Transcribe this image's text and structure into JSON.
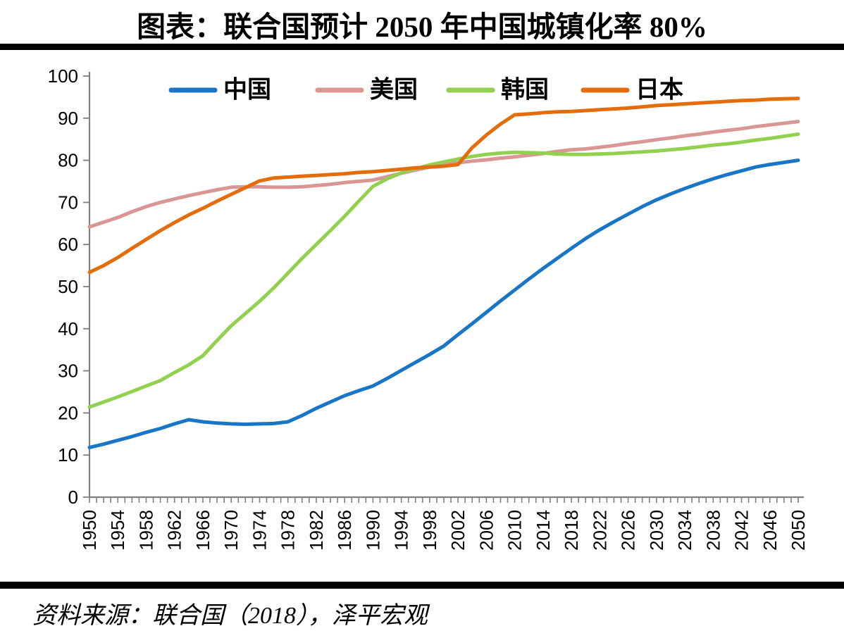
{
  "title": "图表：联合国预计 2050 年中国城镇化率 80%",
  "source": "资料来源：联合国（2018），泽平宏观",
  "colors": {
    "divider_bar": "#000000",
    "axis": "#7f7f7f",
    "text": "#000000",
    "background": "#ffffff"
  },
  "chart_data": {
    "type": "line",
    "title": "联合国预计 2050 年中国城镇化率 80%",
    "xlabel": "",
    "ylabel": "",
    "ylim": [
      0,
      100
    ],
    "y_tick_step": 10,
    "x_range": [
      1950,
      2050
    ],
    "x_minor_tick_step": 1,
    "x_label_step": 4,
    "grid": false,
    "legend_position": "top",
    "x": [
      1950,
      1952,
      1954,
      1956,
      1958,
      1960,
      1962,
      1964,
      1966,
      1968,
      1970,
      1972,
      1974,
      1976,
      1978,
      1980,
      1982,
      1984,
      1986,
      1988,
      1990,
      1992,
      1994,
      1996,
      1998,
      2000,
      2002,
      2004,
      2006,
      2008,
      2010,
      2012,
      2014,
      2016,
      2018,
      2020,
      2022,
      2024,
      2026,
      2028,
      2030,
      2032,
      2034,
      2036,
      2038,
      2040,
      2042,
      2044,
      2046,
      2048,
      2050
    ],
    "series": [
      {
        "key": "china",
        "name": "中国",
        "color": "#1976C6",
        "values": [
          11.8,
          12.6,
          13.5,
          14.4,
          15.4,
          16.3,
          17.4,
          18.4,
          17.9,
          17.6,
          17.4,
          17.3,
          17.4,
          17.5,
          17.9,
          19.4,
          21.1,
          22.6,
          24.1,
          25.3,
          26.4,
          28.2,
          30.1,
          32.0,
          33.9,
          35.9,
          38.6,
          41.2,
          43.9,
          46.6,
          49.2,
          51.8,
          54.3,
          56.7,
          59.1,
          61.4,
          63.5,
          65.4,
          67.2,
          69.0,
          70.6,
          72.0,
          73.3,
          74.5,
          75.6,
          76.6,
          77.5,
          78.4,
          79.0,
          79.5,
          80.0
        ]
      },
      {
        "key": "usa",
        "name": "美国",
        "color": "#D99694",
        "values": [
          64.2,
          65.3,
          66.4,
          67.8,
          69.0,
          70.0,
          70.8,
          71.6,
          72.3,
          73.0,
          73.6,
          73.7,
          73.7,
          73.6,
          73.6,
          73.7,
          74.0,
          74.3,
          74.7,
          75.0,
          75.3,
          76.1,
          76.9,
          77.7,
          78.4,
          79.1,
          79.4,
          79.8,
          80.1,
          80.5,
          80.8,
          81.2,
          81.6,
          82.1,
          82.5,
          82.7,
          83.1,
          83.5,
          84.0,
          84.4,
          84.9,
          85.3,
          85.8,
          86.2,
          86.7,
          87.1,
          87.5,
          88.0,
          88.4,
          88.8,
          89.2
        ]
      },
      {
        "key": "korea",
        "name": "韩国",
        "color": "#92D050",
        "values": [
          21.4,
          22.6,
          23.8,
          25.1,
          26.4,
          27.7,
          29.6,
          31.4,
          33.6,
          37.2,
          40.7,
          43.6,
          46.5,
          49.7,
          53.2,
          56.7,
          60.0,
          63.3,
          66.7,
          70.3,
          73.8,
          75.6,
          77.0,
          78.0,
          78.9,
          79.6,
          80.3,
          80.9,
          81.4,
          81.7,
          81.9,
          81.8,
          81.7,
          81.5,
          81.4,
          81.4,
          81.5,
          81.6,
          81.8,
          82.0,
          82.2,
          82.5,
          82.8,
          83.2,
          83.6,
          83.9,
          84.3,
          84.8,
          85.2,
          85.7,
          86.2
        ]
      },
      {
        "key": "japan",
        "name": "日本",
        "color": "#E56C0A",
        "values": [
          53.4,
          55.0,
          56.9,
          59.1,
          61.2,
          63.3,
          65.2,
          67.0,
          68.6,
          70.3,
          71.9,
          73.5,
          75.1,
          75.8,
          76.0,
          76.2,
          76.4,
          76.6,
          76.8,
          77.1,
          77.3,
          77.6,
          77.9,
          78.2,
          78.4,
          78.6,
          79.0,
          83.0,
          86.0,
          88.6,
          90.8,
          91.0,
          91.3,
          91.5,
          91.6,
          91.8,
          92.0,
          92.2,
          92.4,
          92.7,
          93.0,
          93.2,
          93.4,
          93.6,
          93.8,
          94.0,
          94.2,
          94.3,
          94.5,
          94.6,
          94.7
        ]
      }
    ]
  }
}
